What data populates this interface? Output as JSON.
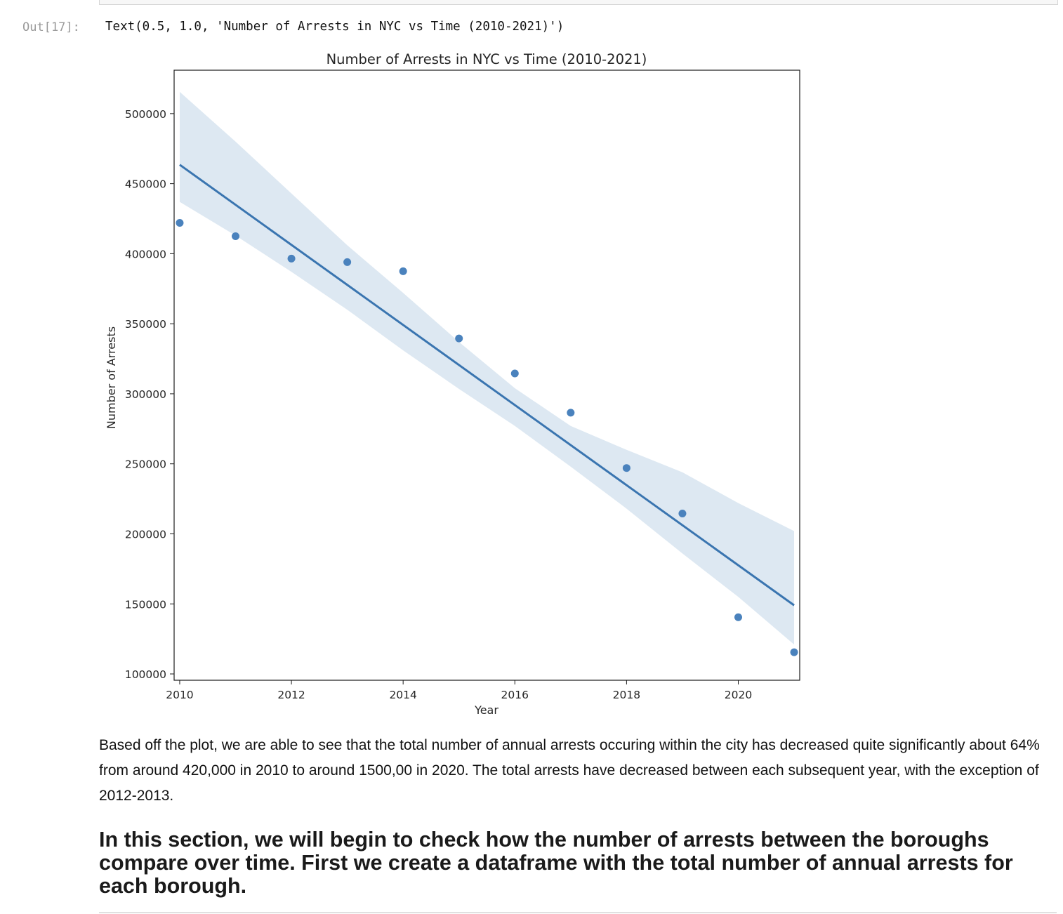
{
  "notebook": {
    "out_prompt": "Out[17]:",
    "out_text": "Text(0.5, 1.0, 'Number of Arrests in NYC vs Time (2010-2021)')"
  },
  "chart_data": {
    "type": "scatter",
    "title": "Number of Arrests in NYC vs Time (2010-2021)",
    "xlabel": "Year",
    "ylabel": "Number of Arrests",
    "xlim": [
      2009.9,
      2021.1
    ],
    "ylim": [
      95500,
      531000
    ],
    "xticks": [
      2010,
      2012,
      2014,
      2016,
      2018,
      2020
    ],
    "yticks": [
      100000,
      150000,
      200000,
      250000,
      300000,
      350000,
      400000,
      450000,
      500000
    ],
    "xtick_labels": [
      "2010",
      "2012",
      "2014",
      "2016",
      "2018",
      "2020"
    ],
    "ytick_labels": [
      "100000",
      "150000",
      "200000",
      "250000",
      "300000",
      "350000",
      "400000",
      "450000",
      "500000"
    ],
    "points": [
      {
        "x": 2010,
        "y": 422000
      },
      {
        "x": 2011,
        "y": 412500
      },
      {
        "x": 2012,
        "y": 396500
      },
      {
        "x": 2013,
        "y": 394000
      },
      {
        "x": 2014,
        "y": 387500
      },
      {
        "x": 2015,
        "y": 339500
      },
      {
        "x": 2016,
        "y": 314500
      },
      {
        "x": 2017,
        "y": 286500
      },
      {
        "x": 2018,
        "y": 247000
      },
      {
        "x": 2019,
        "y": 214500
      },
      {
        "x": 2020,
        "y": 140500
      },
      {
        "x": 2021,
        "y": 115500
      }
    ],
    "regression": {
      "x": [
        2010,
        2021
      ],
      "y": [
        463500,
        149000
      ]
    },
    "confidence_band": [
      {
        "x": 2010,
        "lower": 437000,
        "upper": 515500
      },
      {
        "x": 2011,
        "lower": 413000,
        "upper": 480000
      },
      {
        "x": 2012,
        "lower": 387000,
        "upper": 443000
      },
      {
        "x": 2013,
        "lower": 360000,
        "upper": 406000
      },
      {
        "x": 2014,
        "lower": 331000,
        "upper": 372000
      },
      {
        "x": 2015,
        "lower": 303500,
        "upper": 337000
      },
      {
        "x": 2016,
        "lower": 277000,
        "upper": 304000
      },
      {
        "x": 2017,
        "lower": 248000,
        "upper": 277000
      },
      {
        "x": 2018,
        "lower": 218000,
        "upper": 260000
      },
      {
        "x": 2019,
        "lower": 186000,
        "upper": 244000
      },
      {
        "x": 2020,
        "lower": 155000,
        "upper": 222000
      },
      {
        "x": 2021,
        "lower": 121000,
        "upper": 202000
      }
    ],
    "colors": {
      "point": "#4a82bd",
      "line": "#3a75b0",
      "band": "#dde8f2"
    }
  },
  "markdown": {
    "paragraph": "Based off the plot, we are able to see that the total number of annual arrests occuring within the city has decreased quite significantly about 64% from around 420,000 in 2010 to around 1500,00 in 2020. The total arrests have decreased between each subsequent year, with the exception of 2012-2013.",
    "heading": "In this section, we will begin to check how the number of arrests between the boroughs compare over time. First we create a dataframe with the total number of annual arrests for each borough."
  }
}
